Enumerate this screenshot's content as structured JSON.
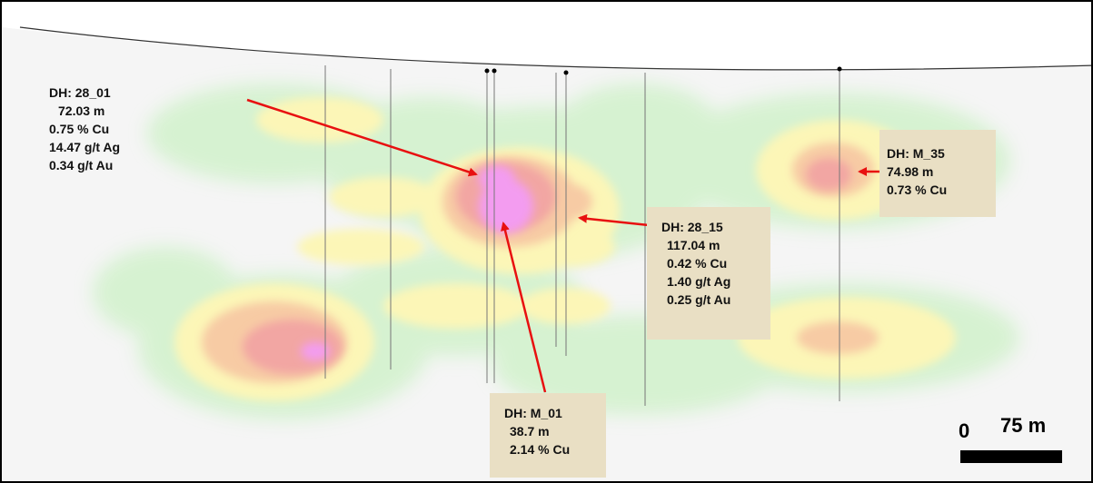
{
  "labels": {
    "dh_28_01": {
      "hole": "DH: 28_01",
      "interval": "72.03 m",
      "cu": "0.75 % Cu",
      "ag": "14.47 g/t Ag",
      "au": "0.34 g/t Au"
    },
    "dh_m_35": {
      "hole": "DH: M_35",
      "interval": "74.98 m",
      "cu": "0.73 % Cu"
    },
    "dh_28_15": {
      "hole": "DH: 28_15",
      "interval": "117.04 m",
      "cu": "0.42 % Cu",
      "ag": "1.40 g/t Ag",
      "au": "0.25 g/t Au"
    },
    "dh_m_01": {
      "hole": "DH: M_01",
      "interval": "38.7 m",
      "cu": "2.14 % Cu"
    }
  },
  "scale": {
    "zero": "0",
    "distance": "75 m"
  },
  "colors": {
    "green": "#d5f2d0",
    "yellow": "#fcf6b7",
    "orange": "#f7cba4",
    "red": "#f2a6a3",
    "magenta": "#f39cf0",
    "label_box": "#e9dfc4",
    "arrow": "#e81010"
  }
}
